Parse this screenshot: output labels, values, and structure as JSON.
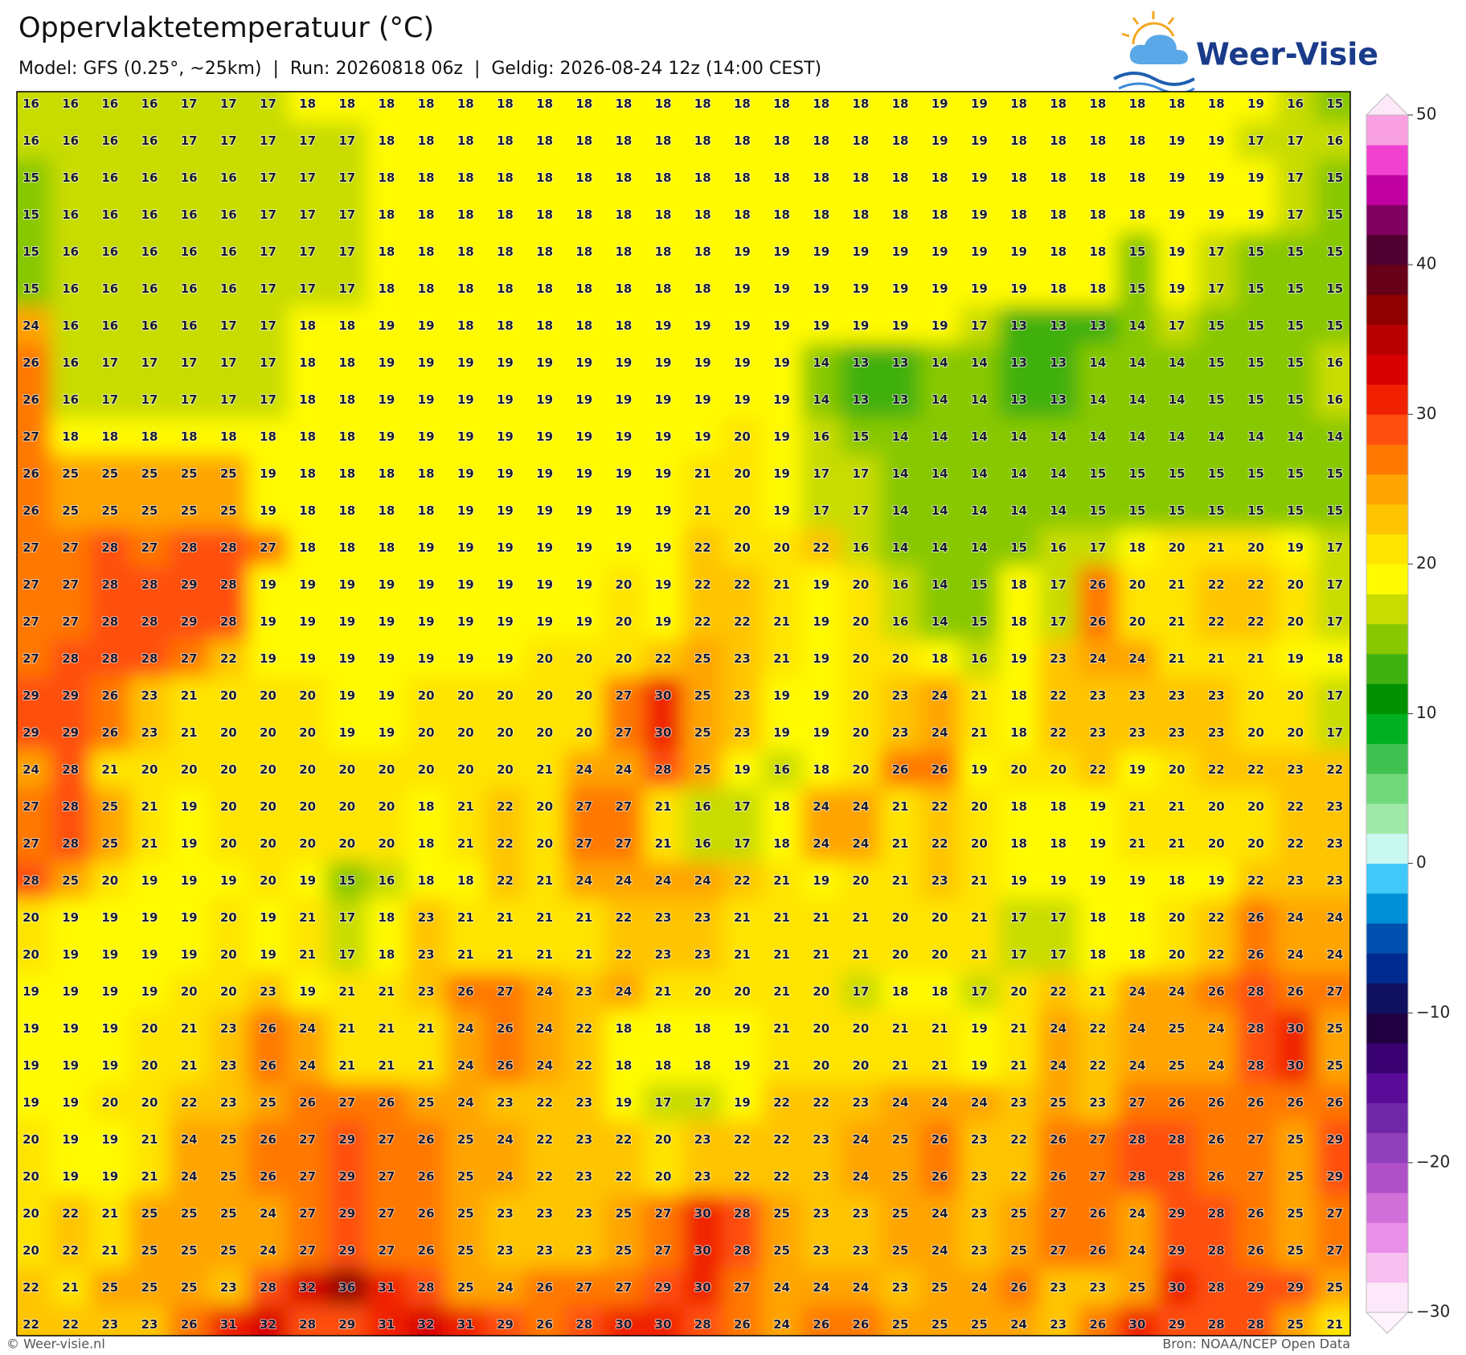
{
  "header": {
    "title": "Oppervlaktetemperatuur (°C)",
    "subtitle": "Model: GFS (0.25°, ~25km)  |  Run: 20260818 06z  |  Geldig: 2026-08-24 12z (14:00 CEST)",
    "logo": "Weer-Visie"
  },
  "map": {
    "rows": [
      [
        16,
        16,
        16,
        16,
        17,
        17,
        17,
        18,
        18,
        18,
        18,
        18,
        18,
        18,
        18,
        18,
        18,
        18,
        18,
        18,
        18,
        18,
        18,
        19,
        19,
        18,
        18,
        18,
        18,
        18,
        18,
        19,
        16,
        15
      ],
      [
        16,
        16,
        16,
        16,
        17,
        17,
        17,
        17,
        17,
        18,
        18,
        18,
        18,
        18,
        18,
        18,
        18,
        18,
        18,
        18,
        18,
        18,
        18,
        19,
        19,
        18,
        18,
        18,
        18,
        19,
        19,
        17,
        17,
        16
      ],
      [
        15,
        16,
        16,
        16,
        16,
        16,
        17,
        17,
        17,
        18,
        18,
        18,
        18,
        18,
        18,
        18,
        18,
        18,
        18,
        18,
        18,
        18,
        18,
        18,
        19,
        18,
        18,
        18,
        18,
        19,
        19,
        19,
        17,
        15
      ],
      [
        15,
        16,
        16,
        16,
        16,
        16,
        17,
        17,
        17,
        18,
        18,
        18,
        18,
        18,
        18,
        18,
        18,
        18,
        18,
        18,
        18,
        18,
        18,
        18,
        19,
        18,
        18,
        18,
        18,
        19,
        19,
        19,
        17,
        15
      ],
      [
        15,
        16,
        16,
        16,
        16,
        16,
        17,
        17,
        17,
        18,
        18,
        18,
        18,
        18,
        18,
        18,
        18,
        18,
        19,
        19,
        19,
        19,
        19,
        19,
        19,
        19,
        18,
        18,
        15,
        19,
        17,
        15,
        15,
        15
      ],
      [
        15,
        16,
        16,
        16,
        16,
        16,
        17,
        17,
        17,
        18,
        18,
        18,
        18,
        18,
        18,
        18,
        18,
        18,
        19,
        19,
        19,
        19,
        19,
        19,
        19,
        19,
        18,
        18,
        15,
        19,
        17,
        15,
        15,
        15
      ],
      [
        24,
        16,
        16,
        16,
        16,
        17,
        17,
        18,
        18,
        19,
        19,
        18,
        18,
        18,
        18,
        18,
        19,
        19,
        19,
        19,
        19,
        19,
        19,
        19,
        17,
        13,
        13,
        13,
        14,
        17,
        15,
        15,
        15,
        15
      ],
      [
        26,
        16,
        17,
        17,
        17,
        17,
        17,
        18,
        18,
        19,
        19,
        19,
        19,
        19,
        19,
        19,
        19,
        19,
        19,
        19,
        14,
        13,
        13,
        14,
        14,
        13,
        13,
        14,
        14,
        14,
        15,
        15,
        15,
        16
      ],
      [
        26,
        16,
        17,
        17,
        17,
        17,
        17,
        18,
        18,
        19,
        19,
        19,
        19,
        19,
        19,
        19,
        19,
        19,
        19,
        19,
        14,
        13,
        13,
        14,
        14,
        13,
        13,
        14,
        14,
        14,
        15,
        15,
        15,
        16
      ],
      [
        27,
        18,
        18,
        18,
        18,
        18,
        18,
        18,
        18,
        19,
        19,
        19,
        19,
        19,
        19,
        19,
        19,
        19,
        20,
        19,
        16,
        15,
        14,
        14,
        14,
        14,
        14,
        14,
        14,
        14,
        14,
        14,
        14,
        14
      ],
      [
        26,
        25,
        25,
        25,
        25,
        25,
        19,
        18,
        18,
        18,
        18,
        19,
        19,
        19,
        19,
        19,
        19,
        21,
        20,
        19,
        17,
        17,
        14,
        14,
        14,
        14,
        14,
        15,
        15,
        15,
        15,
        15,
        15,
        15
      ],
      [
        26,
        25,
        25,
        25,
        25,
        25,
        19,
        18,
        18,
        18,
        18,
        19,
        19,
        19,
        19,
        19,
        19,
        21,
        20,
        19,
        17,
        17,
        14,
        14,
        14,
        14,
        14,
        15,
        15,
        15,
        15,
        15,
        15,
        15
      ],
      [
        27,
        27,
        28,
        27,
        28,
        28,
        27,
        18,
        18,
        18,
        19,
        19,
        19,
        19,
        19,
        19,
        19,
        22,
        20,
        20,
        22,
        16,
        14,
        14,
        14,
        15,
        16,
        17,
        18,
        20,
        21,
        20,
        19,
        17
      ],
      [
        27,
        27,
        28,
        28,
        29,
        28,
        19,
        19,
        19,
        19,
        19,
        19,
        19,
        19,
        19,
        20,
        19,
        22,
        22,
        21,
        19,
        20,
        16,
        14,
        15,
        18,
        17,
        26,
        20,
        21,
        22,
        22,
        20,
        17
      ],
      [
        27,
        27,
        28,
        28,
        29,
        28,
        19,
        19,
        19,
        19,
        19,
        19,
        19,
        19,
        19,
        20,
        19,
        22,
        22,
        21,
        19,
        20,
        16,
        14,
        15,
        18,
        17,
        26,
        20,
        21,
        22,
        22,
        20,
        17
      ],
      [
        27,
        28,
        28,
        28,
        27,
        22,
        19,
        19,
        19,
        19,
        19,
        19,
        19,
        20,
        20,
        20,
        22,
        25,
        23,
        21,
        19,
        20,
        20,
        18,
        16,
        19,
        23,
        24,
        24,
        21,
        21,
        21,
        19,
        18
      ],
      [
        29,
        29,
        26,
        23,
        21,
        20,
        20,
        20,
        19,
        19,
        20,
        20,
        20,
        20,
        20,
        27,
        30,
        25,
        23,
        19,
        19,
        20,
        23,
        24,
        21,
        18,
        22,
        23,
        23,
        23,
        23,
        20,
        20,
        17
      ],
      [
        29,
        29,
        26,
        23,
        21,
        20,
        20,
        20,
        19,
        19,
        20,
        20,
        20,
        20,
        20,
        27,
        30,
        25,
        23,
        19,
        19,
        20,
        23,
        24,
        21,
        18,
        22,
        23,
        23,
        23,
        23,
        20,
        20,
        17
      ],
      [
        24,
        28,
        21,
        20,
        20,
        20,
        20,
        20,
        20,
        20,
        20,
        20,
        20,
        21,
        24,
        24,
        28,
        25,
        19,
        16,
        18,
        20,
        26,
        26,
        19,
        20,
        20,
        22,
        19,
        20,
        22,
        22,
        23,
        22
      ],
      [
        27,
        28,
        25,
        21,
        19,
        20,
        20,
        20,
        20,
        20,
        18,
        21,
        22,
        20,
        27,
        27,
        21,
        16,
        17,
        18,
        24,
        24,
        21,
        22,
        20,
        18,
        18,
        19,
        21,
        21,
        20,
        20,
        22,
        23
      ],
      [
        27,
        28,
        25,
        21,
        19,
        20,
        20,
        20,
        20,
        20,
        18,
        21,
        22,
        20,
        27,
        27,
        21,
        16,
        17,
        18,
        24,
        24,
        21,
        22,
        20,
        18,
        18,
        19,
        21,
        21,
        20,
        20,
        22,
        23
      ],
      [
        28,
        25,
        20,
        19,
        19,
        19,
        20,
        19,
        15,
        16,
        18,
        18,
        22,
        21,
        24,
        24,
        24,
        24,
        22,
        21,
        19,
        20,
        21,
        23,
        21,
        19,
        19,
        19,
        19,
        18,
        19,
        22,
        23,
        23
      ],
      [
        20,
        19,
        19,
        19,
        19,
        20,
        19,
        21,
        17,
        18,
        23,
        21,
        21,
        21,
        21,
        22,
        23,
        23,
        21,
        21,
        21,
        21,
        20,
        20,
        21,
        17,
        17,
        18,
        18,
        20,
        22,
        26,
        24,
        24
      ],
      [
        20,
        19,
        19,
        19,
        19,
        20,
        19,
        21,
        17,
        18,
        23,
        21,
        21,
        21,
        21,
        22,
        23,
        23,
        21,
        21,
        21,
        21,
        20,
        20,
        21,
        17,
        17,
        18,
        18,
        20,
        22,
        26,
        24,
        24
      ],
      [
        19,
        19,
        19,
        19,
        20,
        20,
        23,
        19,
        21,
        21,
        23,
        26,
        27,
        24,
        23,
        24,
        21,
        20,
        20,
        21,
        20,
        17,
        18,
        18,
        17,
        20,
        22,
        21,
        24,
        24,
        26,
        28,
        26,
        27
      ],
      [
        19,
        19,
        19,
        20,
        21,
        23,
        26,
        24,
        21,
        21,
        21,
        24,
        26,
        24,
        22,
        18,
        18,
        18,
        19,
        21,
        20,
        20,
        21,
        21,
        19,
        21,
        24,
        22,
        24,
        25,
        24,
        28,
        30,
        25
      ],
      [
        19,
        19,
        19,
        20,
        21,
        23,
        26,
        24,
        21,
        21,
        21,
        24,
        26,
        24,
        22,
        18,
        18,
        18,
        19,
        21,
        20,
        20,
        21,
        21,
        19,
        21,
        24,
        22,
        24,
        25,
        24,
        28,
        30,
        25
      ],
      [
        19,
        19,
        20,
        20,
        22,
        23,
        25,
        26,
        27,
        26,
        25,
        24,
        23,
        22,
        23,
        19,
        17,
        17,
        19,
        22,
        22,
        23,
        24,
        24,
        24,
        23,
        25,
        23,
        27,
        26,
        26,
        26,
        26,
        26
      ],
      [
        20,
        19,
        19,
        21,
        24,
        25,
        26,
        27,
        29,
        27,
        26,
        25,
        24,
        22,
        23,
        22,
        20,
        23,
        22,
        22,
        23,
        24,
        25,
        26,
        23,
        22,
        26,
        27,
        28,
        28,
        26,
        27,
        25,
        29
      ],
      [
        20,
        19,
        19,
        21,
        24,
        25,
        26,
        27,
        29,
        27,
        26,
        25,
        24,
        22,
        23,
        22,
        20,
        23,
        22,
        22,
        23,
        24,
        25,
        26,
        23,
        22,
        26,
        27,
        28,
        28,
        26,
        27,
        25,
        29
      ],
      [
        20,
        22,
        21,
        25,
        25,
        25,
        24,
        27,
        29,
        27,
        26,
        25,
        23,
        23,
        23,
        25,
        27,
        30,
        28,
        25,
        23,
        23,
        25,
        24,
        23,
        25,
        27,
        26,
        24,
        29,
        28,
        26,
        25,
        27
      ],
      [
        20,
        22,
        21,
        25,
        25,
        25,
        24,
        27,
        29,
        27,
        26,
        25,
        23,
        23,
        23,
        25,
        27,
        30,
        28,
        25,
        23,
        23,
        25,
        24,
        23,
        25,
        27,
        26,
        24,
        29,
        28,
        26,
        25,
        27
      ],
      [
        22,
        21,
        25,
        25,
        25,
        23,
        28,
        32,
        36,
        31,
        28,
        25,
        24,
        26,
        27,
        27,
        29,
        30,
        27,
        24,
        24,
        24,
        23,
        25,
        24,
        26,
        23,
        23,
        25,
        30,
        28,
        29,
        29,
        25
      ],
      [
        22,
        22,
        23,
        23,
        26,
        31,
        32,
        28,
        29,
        31,
        32,
        31,
        29,
        26,
        28,
        30,
        30,
        28,
        26,
        24,
        26,
        26,
        25,
        25,
        25,
        24,
        23,
        26,
        30,
        29,
        28,
        28,
        25,
        21
      ]
    ]
  },
  "colorbar": {
    "lim": [
      -30,
      50
    ],
    "ticks": [
      {
        "value": -30,
        "label": "−30"
      },
      {
        "value": -20,
        "label": "−20"
      },
      {
        "value": -10,
        "label": "−10"
      },
      0,
      10,
      20,
      30,
      40,
      50
    ],
    "colors": [
      "#fde8fa",
      "#f8c0f0",
      "#e890e8",
      "#d070d8",
      "#b050c8",
      "#9040b8",
      "#7028a8",
      "#5a0c98",
      "#380070",
      "#200040",
      "#101060",
      "#002a90",
      "#0050b0",
      "#0090d8",
      "#40c8f8",
      "#c8f8f0",
      "#a0e8a8",
      "#70d878",
      "#40c050",
      "#00b020",
      "#009000",
      "#40b010",
      "#88c800",
      "#c8dc00",
      "#fffa00",
      "#ffe400",
      "#ffc400",
      "#ffa400",
      "#ff7800",
      "#ff5010",
      "#f02000",
      "#d80000",
      "#b80000",
      "#900000",
      "#680018",
      "#500030",
      "#800060",
      "#c000a0",
      "#f040d0",
      "#f8a0e0"
    ]
  },
  "footer": {
    "left": "© Weer-visie.nl",
    "right": "Bron: NOAA/NCEP Open Data"
  }
}
